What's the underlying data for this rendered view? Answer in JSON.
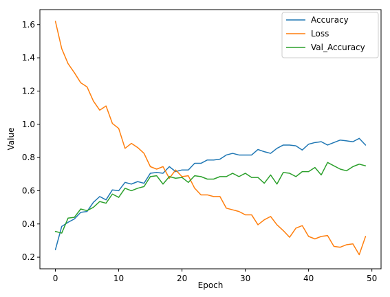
{
  "chart_data": {
    "type": "line",
    "title": "",
    "xlabel": "Epoch",
    "ylabel": "Value",
    "xlim": [
      -2.45,
      51.45
    ],
    "ylim": [
      0.13,
      1.69
    ],
    "xticks": [
      0,
      10,
      20,
      30,
      40,
      50
    ],
    "yticks": [
      0.2,
      0.4,
      0.6,
      0.8,
      1.0,
      1.2,
      1.4,
      1.6
    ],
    "xtick_labels": [
      "0",
      "10",
      "20",
      "30",
      "40",
      "50"
    ],
    "ytick_labels": [
      "0.2",
      "0.4",
      "0.6",
      "0.8",
      "1.0",
      "1.2",
      "1.4",
      "1.6"
    ],
    "grid": false,
    "legend_position": "top-right",
    "x": [
      0,
      1,
      2,
      3,
      4,
      5,
      6,
      7,
      8,
      9,
      10,
      11,
      12,
      13,
      14,
      15,
      16,
      17,
      18,
      19,
      20,
      21,
      22,
      23,
      24,
      25,
      26,
      27,
      28,
      29,
      30,
      31,
      32,
      33,
      34,
      35,
      36,
      37,
      38,
      39,
      40,
      41,
      42,
      43,
      44,
      45,
      46,
      47,
      48,
      49
    ],
    "series": [
      {
        "name": "Accuracy",
        "color": "#1f77b4",
        "values": [
          0.245,
          0.385,
          0.41,
          0.43,
          0.47,
          0.475,
          0.53,
          0.565,
          0.545,
          0.605,
          0.6,
          0.65,
          0.64,
          0.655,
          0.645,
          0.705,
          0.71,
          0.705,
          0.745,
          0.715,
          0.725,
          0.725,
          0.765,
          0.765,
          0.785,
          0.785,
          0.79,
          0.815,
          0.825,
          0.815,
          0.815,
          0.815,
          0.848,
          0.835,
          0.825,
          0.855,
          0.875,
          0.875,
          0.87,
          0.845,
          0.88,
          0.89,
          0.895,
          0.875,
          0.89,
          0.905,
          0.9,
          0.895,
          0.915,
          0.875
        ]
      },
      {
        "name": "Loss",
        "color": "#ff7f0e",
        "values": [
          1.62,
          1.455,
          1.365,
          1.31,
          1.25,
          1.225,
          1.14,
          1.085,
          1.11,
          1.005,
          0.975,
          0.855,
          0.885,
          0.86,
          0.825,
          0.745,
          0.73,
          0.745,
          0.675,
          0.725,
          0.685,
          0.69,
          0.615,
          0.575,
          0.575,
          0.565,
          0.565,
          0.495,
          0.485,
          0.475,
          0.455,
          0.455,
          0.395,
          0.425,
          0.445,
          0.395,
          0.36,
          0.32,
          0.375,
          0.39,
          0.325,
          0.31,
          0.325,
          0.33,
          0.265,
          0.26,
          0.275,
          0.28,
          0.215,
          0.325
        ]
      },
      {
        "name": "Val_Accuracy",
        "color": "#2ca02c",
        "values": [
          0.355,
          0.345,
          0.435,
          0.44,
          0.49,
          0.48,
          0.5,
          0.535,
          0.525,
          0.58,
          0.56,
          0.615,
          0.6,
          0.615,
          0.625,
          0.685,
          0.69,
          0.64,
          0.685,
          0.675,
          0.68,
          0.65,
          0.69,
          0.685,
          0.67,
          0.67,
          0.685,
          0.685,
          0.705,
          0.685,
          0.705,
          0.68,
          0.68,
          0.645,
          0.695,
          0.64,
          0.71,
          0.705,
          0.685,
          0.715,
          0.715,
          0.74,
          0.695,
          0.77,
          0.75,
          0.73,
          0.72,
          0.745,
          0.76,
          0.75
        ]
      }
    ]
  }
}
